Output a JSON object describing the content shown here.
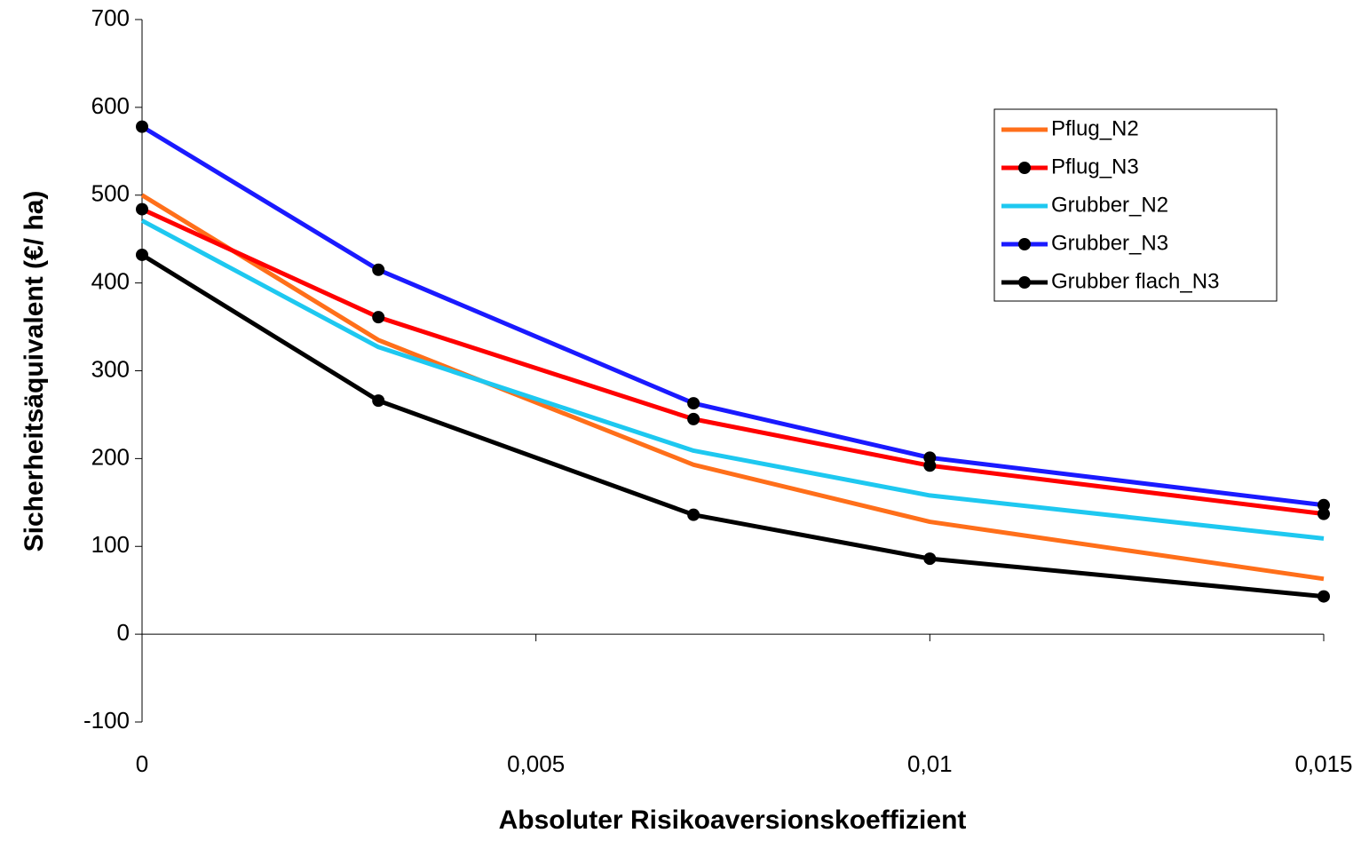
{
  "chart_data": {
    "type": "line",
    "x_label": "Absoluter Risikoaversionskoeffizient",
    "y_label": "Sicherheitsäquivalent (€/ ha)",
    "x": [
      0,
      0.003,
      0.007,
      0.01,
      0.015
    ],
    "series": [
      {
        "name": "Pflug_N2",
        "color": "#ff6f1a",
        "markers": false,
        "values": [
          500,
          335,
          193,
          128,
          63
        ]
      },
      {
        "name": "Pflug_N3",
        "color": "#ff0000",
        "markers": true,
        "values": [
          484,
          361,
          245,
          192,
          137
        ]
      },
      {
        "name": "Grubber_N2",
        "color": "#1ec8f0",
        "markers": false,
        "values": [
          471,
          327,
          209,
          158,
          109
        ]
      },
      {
        "name": "Grubber_N3",
        "color": "#1a1aff",
        "markers": true,
        "values": [
          578,
          415,
          263,
          201,
          147
        ]
      },
      {
        "name": "Grubber flach_N3",
        "color": "#000000",
        "markers": true,
        "values": [
          432,
          266,
          136,
          86,
          43
        ]
      }
    ],
    "xlim": [
      0,
      0.015
    ],
    "xticks": [
      0,
      {
        "value": 0.005,
        "label": "0,005"
      },
      {
        "value": 0.01,
        "label": "0,01"
      },
      {
        "value": 0.015,
        "label": "0,015"
      }
    ],
    "ylim": [
      -100,
      700
    ],
    "yticks": [
      -100,
      0,
      100,
      200,
      300,
      400,
      500,
      600,
      700
    ],
    "grid": false,
    "legend": "upper-right"
  }
}
